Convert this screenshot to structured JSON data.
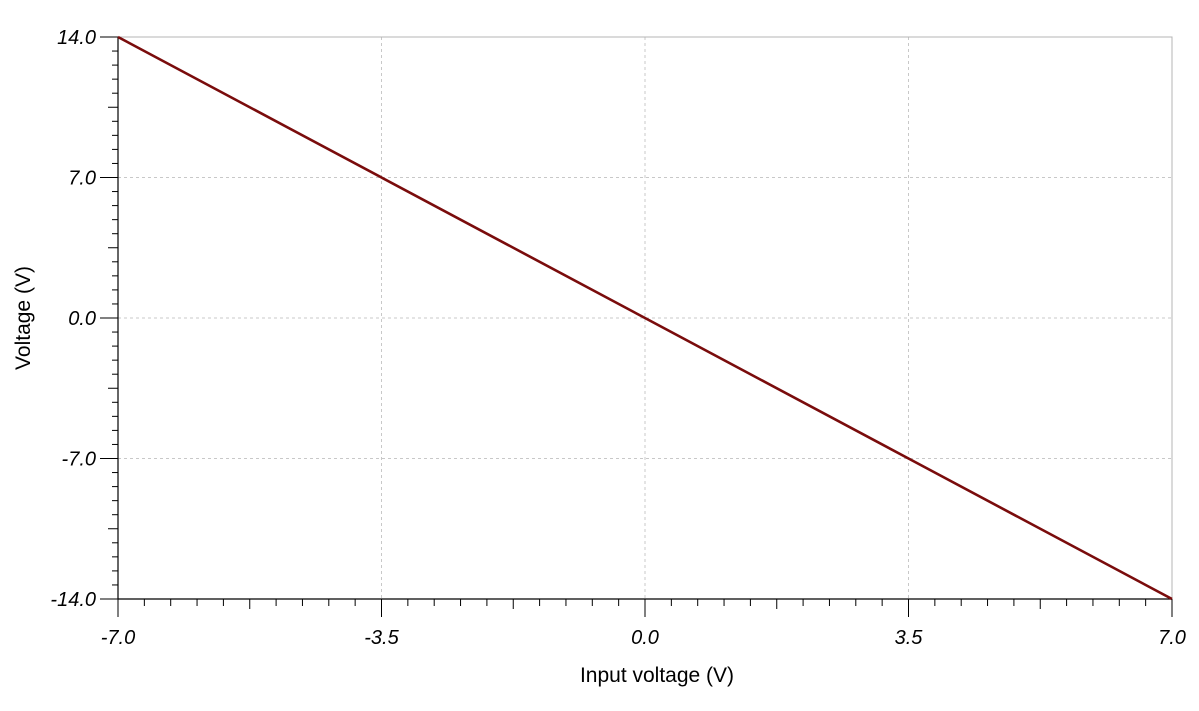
{
  "chart_data": {
    "type": "line",
    "title": "",
    "xlabel": "Input voltage (V)",
    "ylabel": "Voltage (V)",
    "xlim": [
      -7.0,
      7.0
    ],
    "ylim": [
      -14.0,
      14.0
    ],
    "x_ticks": [
      "-7.0",
      "-3.5",
      "0.0",
      "3.5",
      "7.0"
    ],
    "y_ticks": [
      "14.0",
      "7.0",
      "0.0",
      "-7.0",
      "-14.0"
    ],
    "grid": true,
    "series": [
      {
        "color": "#7a0c0c",
        "x": [
          -7.0,
          -3.5,
          0.0,
          3.5,
          7.0
        ],
        "y": [
          14.0,
          7.0,
          0.0,
          -7.0,
          -14.0
        ]
      }
    ]
  }
}
